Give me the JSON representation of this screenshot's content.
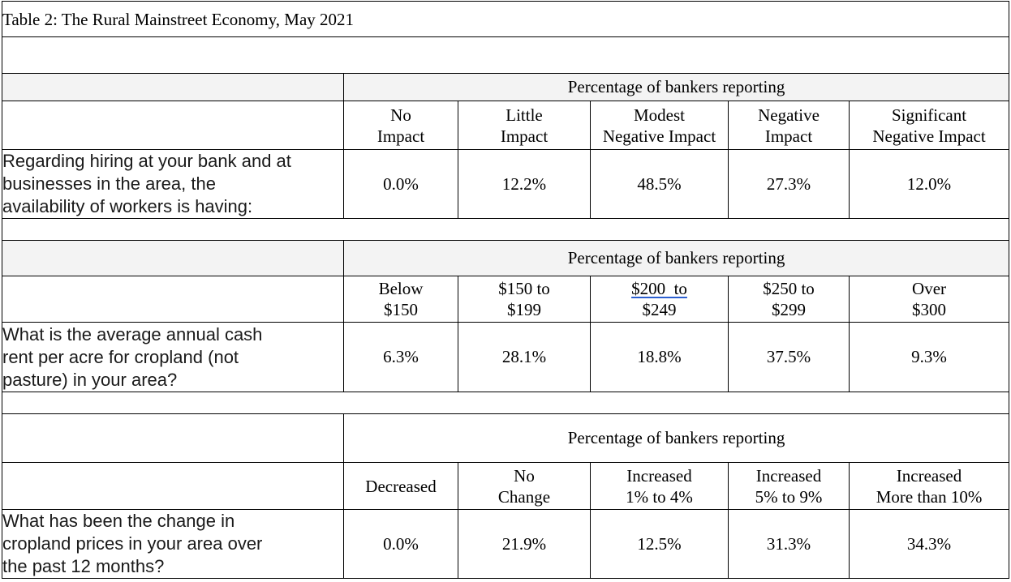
{
  "title": "Table 2:  The Rural Mainstreet Economy, May 2021",
  "sections": [
    {
      "span_header": "Percentage of bankers reporting",
      "columns": [
        [
          "No",
          "Impact"
        ],
        [
          "Little",
          "Impact"
        ],
        [
          "Modest",
          "Negative Impact"
        ],
        [
          "Negative",
          "Impact"
        ],
        [
          "Significant",
          "Negative Impact"
        ]
      ],
      "question": [
        "Regarding hiring at your bank and at",
        "businesses in the area, the",
        "availability of workers is having:"
      ],
      "values": [
        "0.0%",
        "12.2%",
        "48.5%",
        "27.3%",
        "12.0%"
      ]
    },
    {
      "span_header": "Percentage of bankers reporting",
      "columns": [
        [
          "Below",
          "$150"
        ],
        [
          "$150 to",
          "$199"
        ],
        [
          "$200  to",
          "$249"
        ],
        [
          "$250 to",
          "$299"
        ],
        [
          "Over",
          "$300"
        ]
      ],
      "question": [
        "What is the average annual cash",
        "rent per acre for cropland (not",
        "pasture) in your area?"
      ],
      "values": [
        "6.3%",
        "28.1%",
        "18.8%",
        "37.5%",
        "9.3%"
      ]
    },
    {
      "span_header": "Percentage of bankers reporting",
      "columns": [
        [
          "Decreased"
        ],
        [
          "No",
          "Change"
        ],
        [
          "Increased",
          "1% to 4%"
        ],
        [
          "Increased",
          "5% to 9%"
        ],
        [
          "Increased",
          "More than 10%"
        ]
      ],
      "question": [
        "What has been the change in",
        "cropland prices in your area over",
        "the past 12 months?"
      ],
      "values": [
        "0.0%",
        "21.9%",
        "12.5%",
        "31.3%",
        "34.3%"
      ]
    }
  ]
}
